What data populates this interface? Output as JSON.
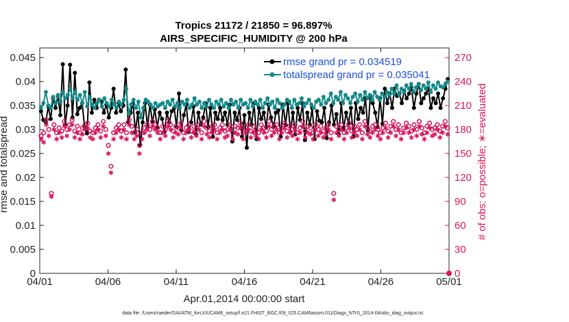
{
  "chart_data": {
    "type": "line",
    "title_line1": "Tropics 21172 / 21850 = 96.897%",
    "title_line2": "AIRS_SPECIFIC_HUMIDITY @ 200 hPa",
    "xlabel": "Apr.01,2014 00:00:00 start",
    "ylabel": "rmse and totalspread",
    "y2label": "# of obs: o=possible; ∗=evaluated",
    "footnote": "data file: /Users/raeder/DAI/ATM_forcXX/CAM6_setup/f.e21.FHIST_BGC.f09_025.CAM6assim.011/Diags_NTrS_2014-04/obs_diag_output.nc",
    "x_ticks": [
      "04/01",
      "04/06",
      "04/11",
      "04/16",
      "04/21",
      "04/26",
      "05/01"
    ],
    "xlim": [
      0,
      30
    ],
    "ylim": [
      0,
      0.047
    ],
    "y_ticks": [
      "0",
      "0.005",
      "0.01",
      "0.015",
      "0.02",
      "0.025",
      "0.03",
      "0.035",
      "0.04",
      "0.045"
    ],
    "y2lim": [
      0,
      282
    ],
    "y2_ticks": [
      "0",
      "30",
      "60",
      "90",
      "120",
      "150",
      "180",
      "210",
      "240",
      "270"
    ],
    "legend": {
      "position": "top-right",
      "entries": [
        "rmse grand pr = 0.034519",
        "totalspread grand pr = 0.035041"
      ]
    },
    "series": [
      {
        "name": "rmse grand pr = 0.034519",
        "color": "#000000",
        "axis": "left",
        "values": [
          0.0338,
          0.032,
          0.0315,
          0.0348,
          0.0322,
          0.0365,
          0.0345,
          0.037,
          0.033,
          0.0436,
          0.031,
          0.035,
          0.0435,
          0.0325,
          0.0418,
          0.0332,
          0.0345,
          0.0355,
          0.0305,
          0.0292,
          0.0398,
          0.0335,
          0.0362,
          0.0345,
          0.0362,
          0.0358,
          0.0335,
          0.0352,
          0.0325,
          0.0345,
          0.0385,
          0.0335,
          0.0355,
          0.0338,
          0.035,
          0.0425,
          0.0315,
          0.0335,
          0.0355,
          0.0295,
          0.0335,
          0.0268,
          0.0315,
          0.0355,
          0.0305,
          0.0352,
          0.0315,
          0.0342,
          0.0305,
          0.0335,
          0.0322,
          0.0295,
          0.0335,
          0.0315,
          0.0338,
          0.0345,
          0.0305,
          0.0375,
          0.0298,
          0.033,
          0.0352,
          0.0295,
          0.0315,
          0.0348,
          0.029,
          0.0335,
          0.031,
          0.0325,
          0.0355,
          0.0305,
          0.0345,
          0.0285,
          0.0335,
          0.0322,
          0.0345,
          0.032,
          0.0335,
          0.031,
          0.0352,
          0.0275,
          0.0335,
          0.032,
          0.0345,
          0.0285,
          0.033,
          0.0262,
          0.0335,
          0.031,
          0.0355,
          0.028,
          0.0345,
          0.0322,
          0.0335,
          0.0305,
          0.0352,
          0.0325,
          0.0305,
          0.0335,
          0.034,
          0.0285,
          0.0352,
          0.031,
          0.0355,
          0.0295,
          0.0335,
          0.029,
          0.0345,
          0.032,
          0.0355,
          0.0278,
          0.0335,
          0.031,
          0.0345,
          0.028,
          0.0338,
          0.0318,
          0.0315,
          0.0345,
          0.0282,
          0.0315,
          0.035,
          0.031,
          0.0332,
          0.029,
          0.0355,
          0.0302,
          0.0335,
          0.0312,
          0.0345,
          0.0285,
          0.0355,
          0.0322,
          0.0345,
          0.0335,
          0.0365,
          0.0298,
          0.037,
          0.0355,
          0.0335,
          0.0305,
          0.0365,
          0.0312,
          0.0385,
          0.0355,
          0.0375,
          0.0345,
          0.0385,
          0.037,
          0.0375,
          0.0355,
          0.038,
          0.0365,
          0.0375,
          0.0388,
          0.0345,
          0.0375,
          0.0395,
          0.0355,
          0.0365,
          0.0375,
          0.0385,
          0.0345,
          0.0365,
          0.0355,
          0.0375,
          0.0345,
          0.0365,
          0.0385,
          0.0405
        ]
      },
      {
        "name": "totalspread grand pr = 0.035041",
        "color": "#138a89",
        "axis": "left",
        "values": [
          0.0345,
          0.0355,
          0.0378,
          0.035,
          0.0345,
          0.0368,
          0.0355,
          0.0372,
          0.0358,
          0.0378,
          0.0365,
          0.0372,
          0.0385,
          0.0365,
          0.0378,
          0.0362,
          0.0372,
          0.0355,
          0.0378,
          0.0348,
          0.0368,
          0.0352,
          0.0345,
          0.0355,
          0.0362,
          0.0348,
          0.0365,
          0.0355,
          0.0348,
          0.0362,
          0.0352,
          0.0345,
          0.0358,
          0.0352,
          0.0362,
          0.0385,
          0.0335,
          0.0352,
          0.0362,
          0.0345,
          0.0358,
          0.0325,
          0.0345,
          0.0362,
          0.0358,
          0.0352,
          0.0345,
          0.0355,
          0.0348,
          0.0352,
          0.0355,
          0.0345,
          0.0358,
          0.0352,
          0.0362,
          0.0348,
          0.0355,
          0.0345,
          0.0358,
          0.0352,
          0.0362,
          0.0345,
          0.0352,
          0.0365,
          0.0352,
          0.0358,
          0.0345,
          0.0355,
          0.0348,
          0.0362,
          0.0352,
          0.0345,
          0.0358,
          0.0352,
          0.0362,
          0.0348,
          0.0355,
          0.0345,
          0.0362,
          0.0352,
          0.0358,
          0.0345,
          0.0362,
          0.0352,
          0.0355,
          0.0345,
          0.0362,
          0.0348,
          0.0358,
          0.0352,
          0.0362,
          0.0345,
          0.0355,
          0.0365,
          0.0352,
          0.0358,
          0.0345,
          0.0362,
          0.0355,
          0.0345,
          0.0352,
          0.0362,
          0.0358,
          0.0345,
          0.0362,
          0.0352,
          0.0355,
          0.0365,
          0.0348,
          0.0355,
          0.0362,
          0.0352,
          0.0345,
          0.0358,
          0.0362,
          0.0352,
          0.0368,
          0.0355,
          0.0362,
          0.0375,
          0.0355,
          0.0368,
          0.0362,
          0.0378,
          0.0355,
          0.0372,
          0.0365,
          0.0355,
          0.0368,
          0.0375,
          0.0358,
          0.0372,
          0.0362,
          0.0378,
          0.0365,
          0.0372,
          0.0362,
          0.0378,
          0.0368,
          0.0362,
          0.0375,
          0.0368,
          0.0378,
          0.0372,
          0.0385,
          0.0375,
          0.0392,
          0.0372,
          0.0385,
          0.0378,
          0.0392,
          0.0385,
          0.0395,
          0.0378,
          0.0388,
          0.0395,
          0.0382,
          0.0392,
          0.0385,
          0.0398,
          0.0378,
          0.0392,
          0.0385,
          0.0398,
          0.039,
          0.0388,
          0.0395,
          0.04
        ]
      },
      {
        "name": "",
        "color": "#d6155c",
        "axis": "right",
        "marker": "o",
        "values": [
          172,
          176,
          192,
          180,
          100,
          186,
          176,
          182,
          178,
          190,
          180,
          186,
          192,
          178,
          184,
          176,
          182,
          186,
          188,
          178,
          176,
          182,
          186,
          178,
          190,
          180,
          160,
          134,
          176,
          182,
          186,
          178,
          186,
          176,
          192,
          184,
          176,
          180,
          160,
          176,
          182,
          186,
          180,
          190,
          186,
          182,
          176,
          184,
          180,
          190,
          186,
          178,
          184,
          182,
          188,
          176,
          182,
          186,
          178,
          184,
          180,
          186,
          176,
          190,
          182,
          178,
          184,
          186,
          176,
          182,
          186,
          178,
          180,
          186,
          176,
          184,
          182,
          188,
          176,
          182,
          186,
          178,
          184,
          180,
          176,
          186,
          182,
          178,
          190,
          180,
          184,
          186,
          176,
          182,
          188,
          178,
          184,
          180,
          186,
          176,
          182,
          190,
          178,
          184,
          182,
          176,
          186,
          180,
          184,
          178,
          182,
          186,
          176,
          100,
          184,
          180,
          186,
          176,
          182,
          188,
          178,
          184,
          180,
          186,
          176,
          190,
          182,
          178,
          184,
          186,
          180,
          176,
          182,
          188,
          178,
          184,
          190,
          180,
          186,
          176,
          182,
          188,
          184,
          178,
          186,
          180,
          190,
          182,
          176,
          184,
          188,
          180,
          182,
          186,
          178,
          184,
          190,
          182
        ]
      },
      {
        "name": "",
        "color": "#d6155c",
        "axis": "right",
        "marker": "*",
        "values": [
          168,
          164,
          186,
          172,
          96,
          180,
          168,
          176,
          170,
          184,
          172,
          180,
          186,
          170,
          176,
          168,
          174,
          180,
          182,
          170,
          168,
          176,
          180,
          170,
          184,
          172,
          150,
          126,
          168,
          176,
          180,
          170,
          180,
          168,
          186,
          176,
          168,
          172,
          150,
          168,
          176,
          180,
          172,
          184,
          180,
          176,
          168,
          176,
          172,
          184,
          180,
          170,
          176,
          174,
          182,
          168,
          176,
          180,
          170,
          176,
          172,
          180,
          168,
          184,
          174,
          170,
          176,
          180,
          168,
          176,
          180,
          170,
          172,
          180,
          168,
          176,
          174,
          182,
          168,
          176,
          180,
          170,
          176,
          172,
          168,
          180,
          176,
          170,
          184,
          172,
          176,
          180,
          168,
          176,
          182,
          170,
          176,
          172,
          180,
          168,
          176,
          184,
          170,
          176,
          174,
          168,
          180,
          172,
          176,
          170,
          174,
          180,
          168,
          92,
          176,
          172,
          180,
          168,
          176,
          182,
          170,
          176,
          172,
          180,
          168,
          184,
          174,
          170,
          176,
          180,
          172,
          168,
          176,
          182,
          170,
          176,
          184,
          172,
          180,
          168,
          176,
          182,
          176,
          170,
          180,
          172,
          184,
          174,
          168,
          176,
          182,
          172,
          174,
          180,
          170,
          176,
          184,
          174
        ]
      }
    ],
    "extra_points": [
      {
        "x": 30,
        "y": 0,
        "label": "05/01 zero marker"
      }
    ]
  }
}
